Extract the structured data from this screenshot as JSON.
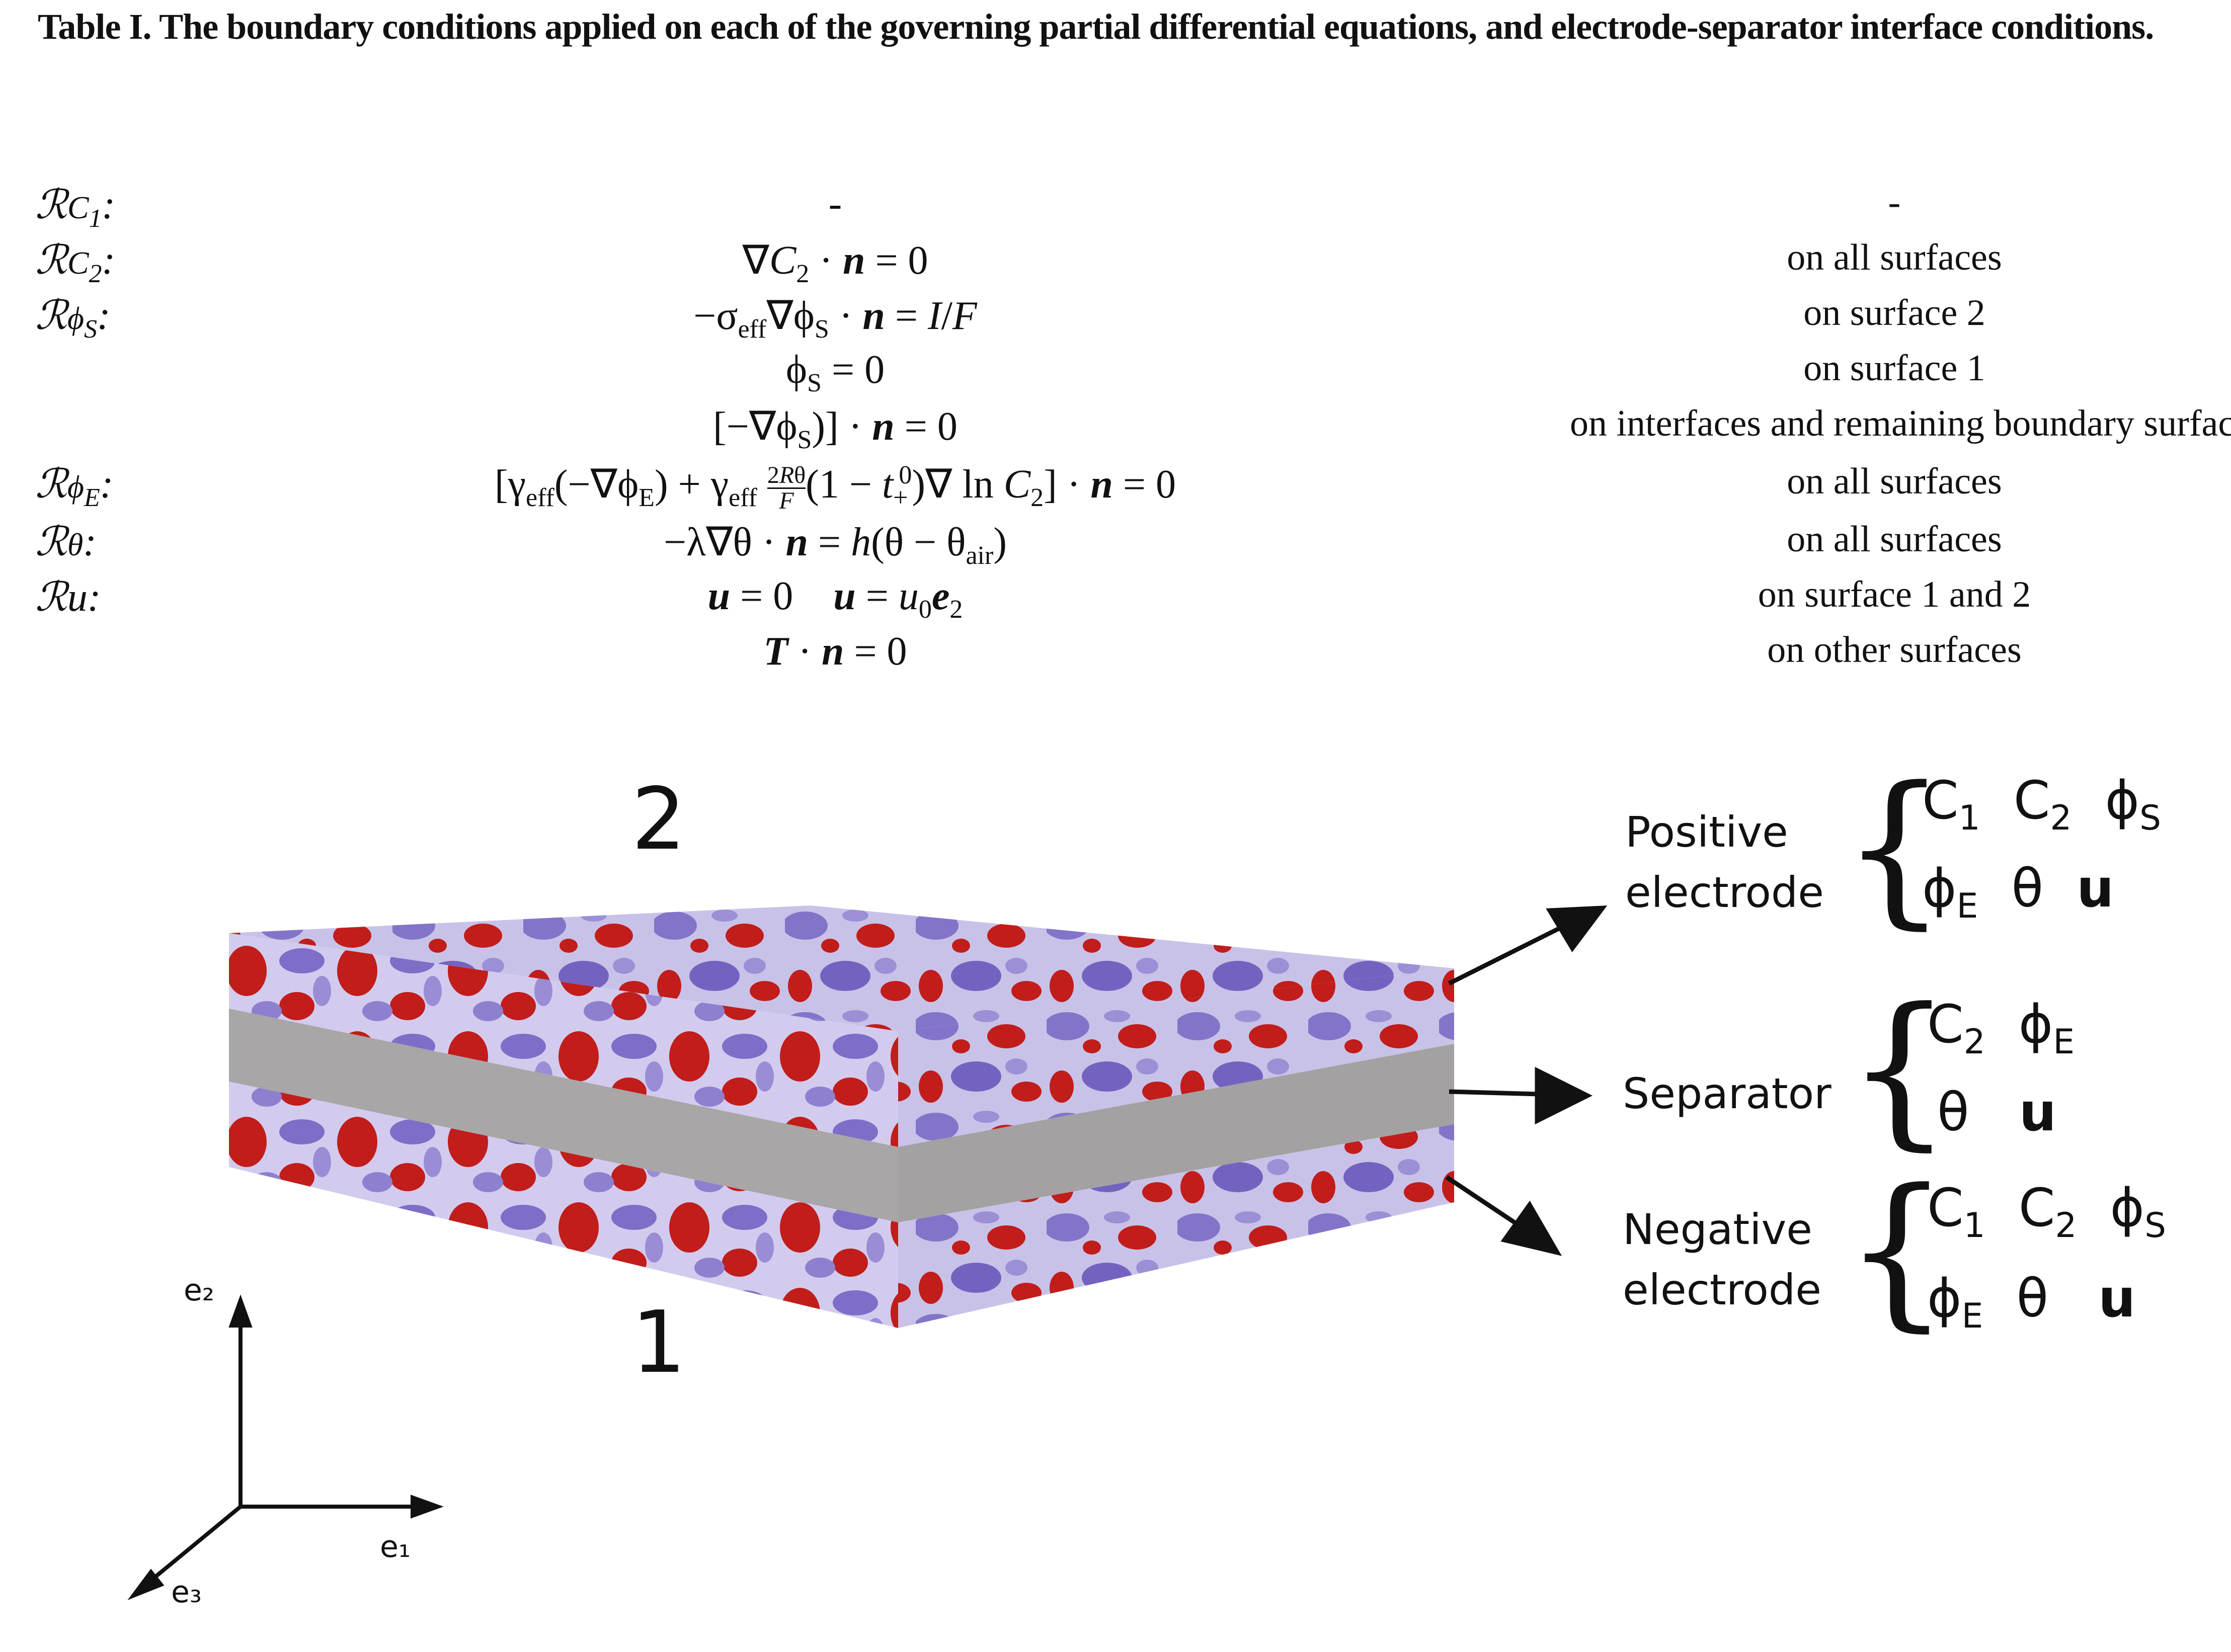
{
  "caption": "Table I.  The boundary conditions applied on each of the governing partial differential equations, and electrode-separator interface conditions.",
  "table": {
    "rows": [
      {
        "label": "ℛC₁:",
        "equation": "-",
        "condition": "-"
      },
      {
        "label": "ℛC₂:",
        "equation": "∇C₂ · n = 0",
        "condition": "on all surfaces"
      },
      {
        "label": "ℛϕS:",
        "equation": "−σeff∇ϕS · n = I/F",
        "condition": "on surface 2"
      },
      {
        "label": "",
        "equation": "ϕS = 0",
        "condition": "on surface 1"
      },
      {
        "label": "",
        "equation": "[−∇ϕS)] · n = 0",
        "condition": "on interfaces and remaining boundary surfaces"
      },
      {
        "label": "ℛϕE:",
        "equation": "[γeff(−∇ϕE) + γeff (2Rθ/F)(1 − t₊⁰)∇ ln C₂] · n = 0",
        "condition": "on all surfaces"
      },
      {
        "label": "ℛθ:",
        "equation": "−λ∇θ · n = h(θ − θair)",
        "condition": "on all surfaces"
      },
      {
        "label": "ℛu:",
        "equation": "u = 0    u = u₀e₂",
        "condition": "on surface 1 and 2"
      },
      {
        "label": "",
        "equation": "T · n = 0",
        "condition": "on other surfaces"
      }
    ]
  },
  "figure": {
    "surface_top": "2",
    "surface_bottom": "1",
    "axes": {
      "e1": "e₁",
      "e2": "e₂",
      "e3": "e₃"
    },
    "layers": [
      {
        "name_line1": "Positive",
        "name_line2": "electrode",
        "vars_line1": "C₁  C₂  ϕS",
        "vars_line2": "ϕE  θ  u"
      },
      {
        "name_line1": "Separator",
        "name_line2": "",
        "vars_line1": "C₂  ϕE",
        "vars_line2": "θ  u"
      },
      {
        "name_line1": "Negative",
        "name_line2": "electrode",
        "vars_line1": "C₁  C₂  ϕS",
        "vars_line2": "ϕE  θ  u"
      }
    ],
    "colors": {
      "red": "#c0201e",
      "purple": "#8a7ac8",
      "separator": "#a8a6a6",
      "separator_side": "#8f8d8d"
    }
  }
}
